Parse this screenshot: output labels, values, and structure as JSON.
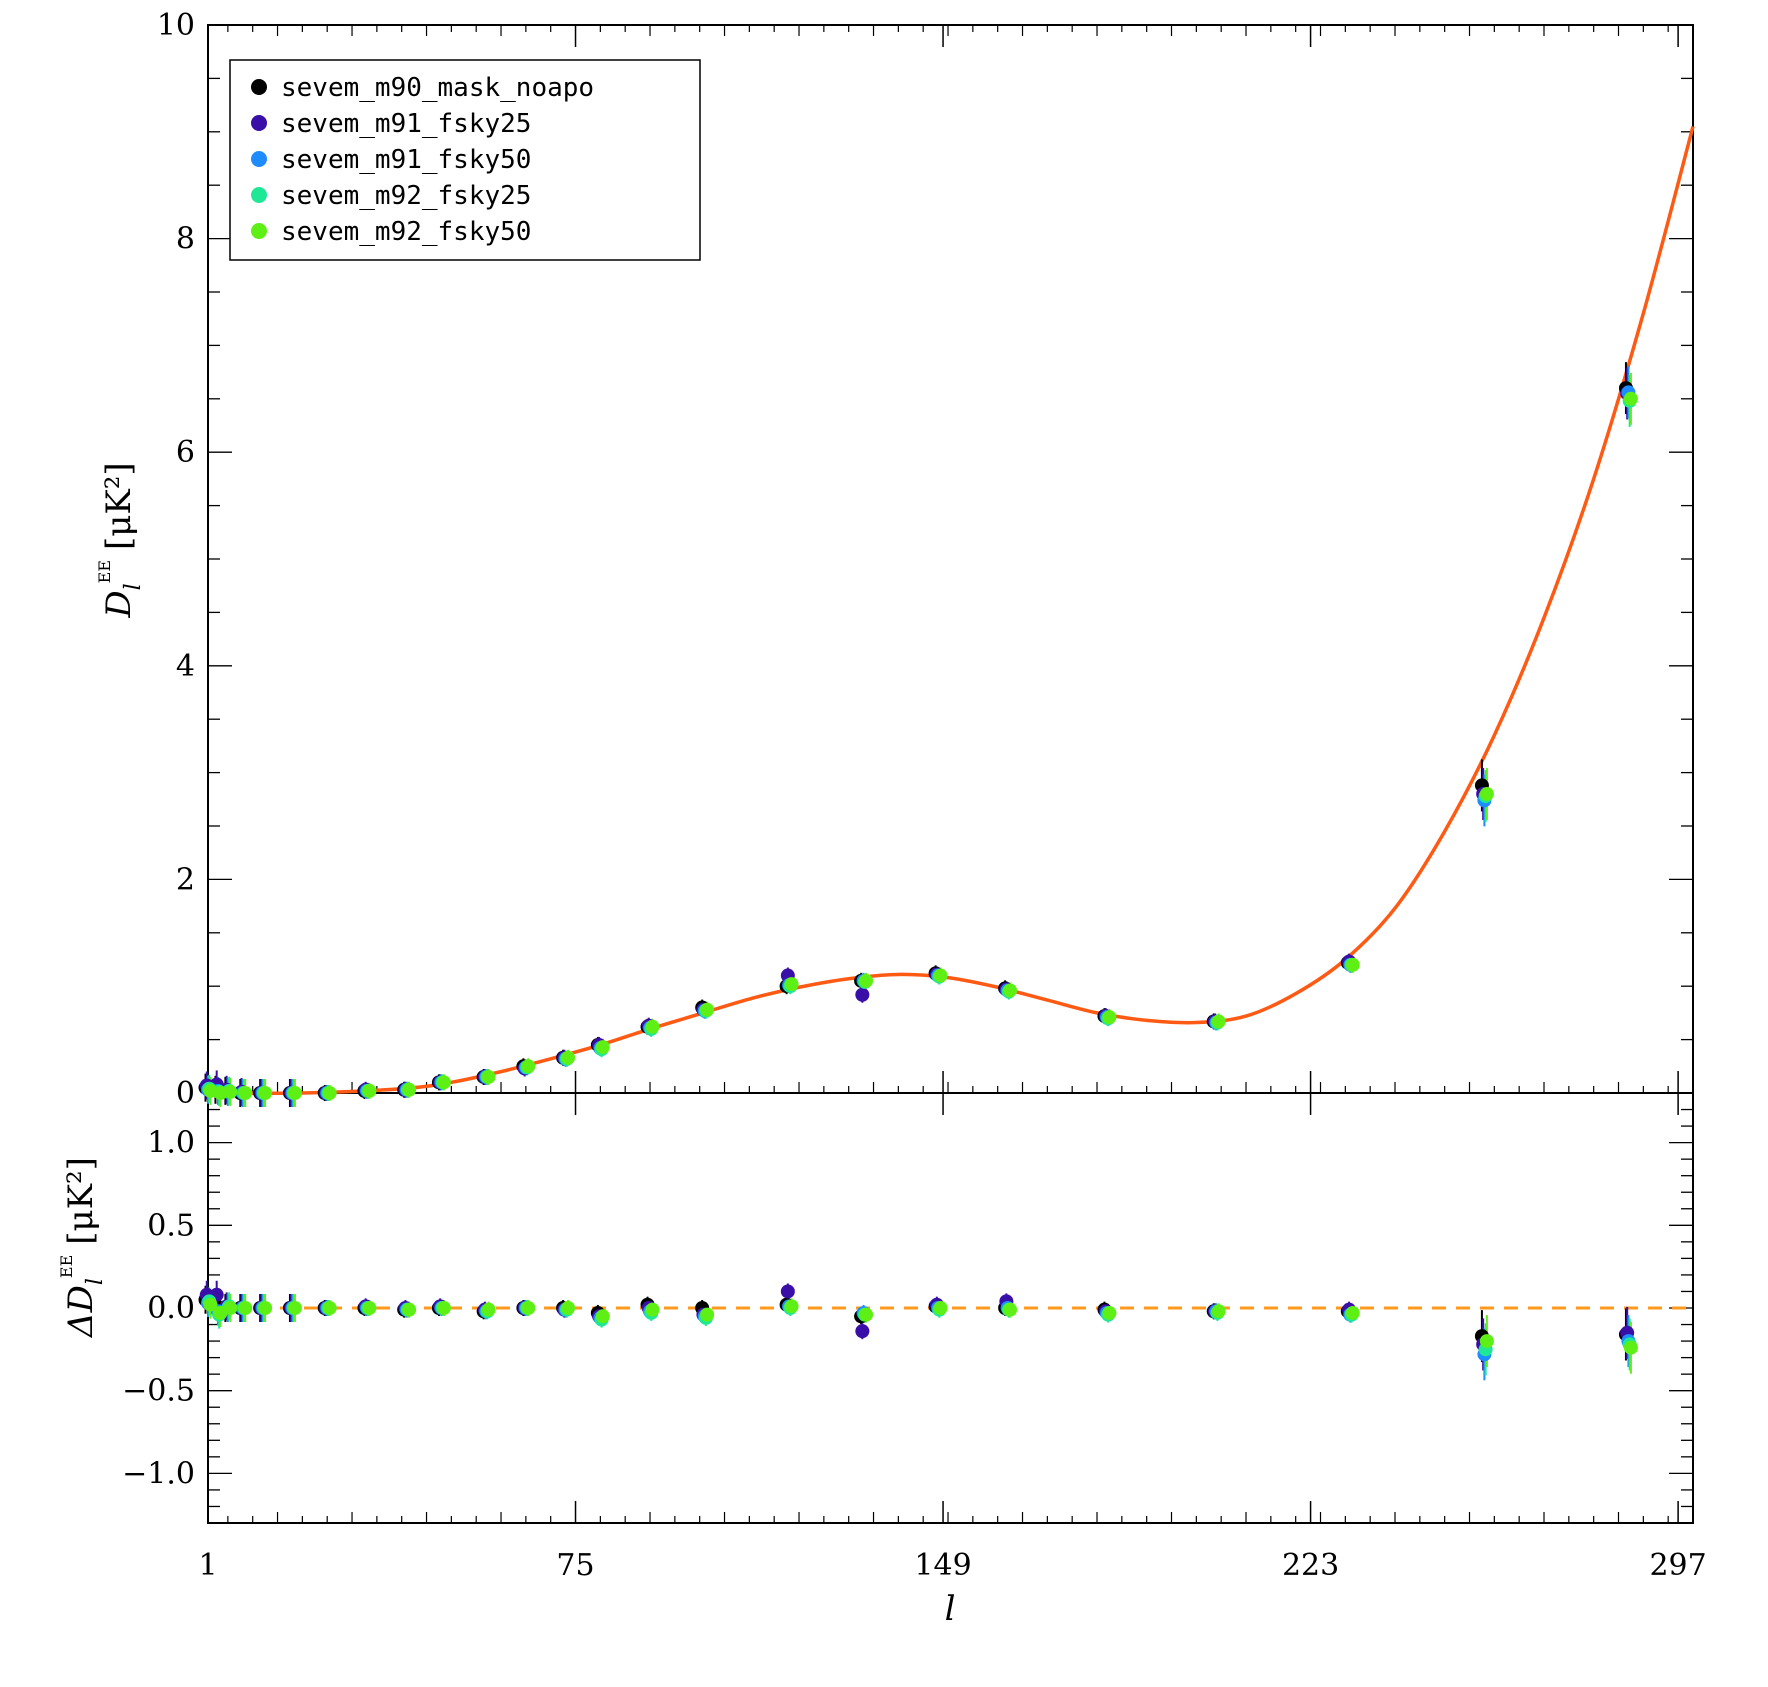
{
  "chart_data": [
    {
      "panel": "top",
      "type": "scatter",
      "xlabel": "l",
      "ylabel": "D_l^EE [μK²]",
      "ylabel_parts": {
        "main": "D",
        "sub": "l",
        "sup": "EE",
        "unit": "[μK²]"
      },
      "xlim": [
        1,
        300
      ],
      "ylim": [
        0,
        10
      ],
      "x_ticks": [
        "1",
        "75",
        "149",
        "223",
        "297"
      ],
      "y_ticks": [
        "0",
        "2",
        "4",
        "6",
        "8",
        "10"
      ],
      "legend_position": "top-left",
      "x": [
        1,
        3,
        5,
        8,
        12,
        18,
        25,
        33,
        41,
        48,
        57,
        65,
        73,
        80,
        90,
        101,
        118,
        133,
        148,
        162,
        182,
        204,
        231,
        258,
        287
      ],
      "model": {
        "style": "solid",
        "color": "#ff5a14",
        "x": [
          1,
          20,
          40,
          50,
          60,
          70,
          80,
          90,
          100,
          110,
          120,
          130,
          140,
          150,
          160,
          170,
          180,
          190,
          200,
          210,
          220,
          230,
          240,
          250,
          260,
          270,
          280,
          290,
          300
        ],
        "y": [
          0.0,
          0.0,
          0.04,
          0.1,
          0.2,
          0.32,
          0.45,
          0.6,
          0.74,
          0.88,
          0.99,
          1.07,
          1.11,
          1.08,
          0.99,
          0.87,
          0.75,
          0.68,
          0.66,
          0.72,
          0.93,
          1.25,
          1.73,
          2.45,
          3.35,
          4.45,
          5.75,
          7.3,
          9.05
        ]
      },
      "series": [
        {
          "name": "sevem_m90_mask_noapo",
          "color": "#000000",
          "y": [
            0.05,
            0.03,
            0.02,
            0.0,
            0.0,
            0.0,
            0.0,
            0.02,
            0.03,
            0.1,
            0.15,
            0.25,
            0.33,
            0.45,
            0.62,
            0.8,
            1.0,
            1.05,
            1.12,
            0.98,
            0.72,
            0.67,
            1.22,
            2.88,
            6.6
          ]
        },
        {
          "name": "sevem_m91_fsky25",
          "color": "#3a0fa8",
          "y": [
            0.07,
            0.08,
            0.03,
            0.01,
            0.0,
            0.0,
            0.0,
            0.03,
            0.03,
            0.1,
            0.15,
            0.23,
            0.33,
            0.45,
            0.63,
            0.78,
            1.1,
            0.92,
            1.11,
            0.97,
            0.72,
            0.67,
            1.23,
            2.8,
            6.55
          ]
        },
        {
          "name": "sevem_m91_fsky50",
          "color": "#1e8cff",
          "y": [
            0.03,
            0.02,
            0.01,
            0.0,
            0.0,
            0.0,
            0.0,
            0.02,
            0.03,
            0.1,
            0.15,
            0.24,
            0.32,
            0.42,
            0.61,
            0.77,
            1.01,
            1.05,
            1.1,
            0.96,
            0.71,
            0.66,
            1.2,
            2.74,
            6.56
          ]
        },
        {
          "name": "sevem_m92_fsky25",
          "color": "#1ee896",
          "y": [
            0.04,
            0.01,
            0.02,
            0.0,
            0.0,
            0.0,
            0.0,
            0.02,
            0.03,
            0.1,
            0.15,
            0.24,
            0.32,
            0.41,
            0.6,
            0.77,
            1.0,
            1.04,
            1.09,
            0.95,
            0.7,
            0.66,
            1.2,
            2.78,
            6.48
          ]
        },
        {
          "name": "sevem_m92_fsky50",
          "color": "#5ef014",
          "y": [
            0.02,
            0.0,
            0.01,
            0.0,
            0.0,
            0.0,
            0.0,
            0.02,
            0.03,
            0.1,
            0.15,
            0.25,
            0.33,
            0.43,
            0.62,
            0.78,
            1.02,
            1.05,
            1.1,
            0.96,
            0.71,
            0.67,
            1.2,
            2.8,
            6.5
          ]
        }
      ]
    },
    {
      "panel": "bottom",
      "type": "scatter",
      "xlabel": "l",
      "ylabel": "ΔD_l^EE [μK²]",
      "ylabel_parts": {
        "main": "ΔD",
        "sub": "l",
        "sup": "EE",
        "unit": "[μK²]"
      },
      "xlim": [
        1,
        300
      ],
      "ylim": [
        -1.3,
        1.3
      ],
      "y_ticks": [
        "1.0",
        "0.5",
        "0.0",
        "−0.5",
        "−1.0"
      ],
      "model": {
        "style": "dashed",
        "color": "#ff9a1e",
        "y": 0
      },
      "x": [
        1,
        3,
        5,
        8,
        12,
        18,
        25,
        33,
        41,
        48,
        57,
        65,
        73,
        80,
        90,
        101,
        118,
        133,
        148,
        162,
        182,
        204,
        231,
        258,
        287
      ],
      "series": [
        {
          "name": "sevem_m90_mask_noapo",
          "y": [
            0.05,
            0.02,
            0.0,
            0.0,
            0.0,
            0.0,
            0.0,
            0.0,
            -0.01,
            0.0,
            -0.02,
            0.0,
            0.0,
            -0.03,
            0.02,
            0.0,
            0.02,
            -0.05,
            0.01,
            0.0,
            -0.01,
            -0.02,
            -0.02,
            -0.17,
            -0.16
          ]
        },
        {
          "name": "sevem_m91_fsky25",
          "y": [
            0.08,
            0.08,
            0.01,
            0.0,
            0.0,
            0.0,
            0.0,
            0.01,
            0.0,
            0.01,
            -0.01,
            0.0,
            -0.01,
            -0.05,
            0.0,
            -0.04,
            0.1,
            -0.14,
            0.02,
            0.04,
            -0.02,
            -0.02,
            -0.01,
            -0.22,
            -0.15
          ]
        },
        {
          "name": "sevem_m91_fsky50",
          "y": [
            0.03,
            -0.02,
            0.0,
            0.0,
            0.0,
            0.0,
            0.0,
            0.0,
            -0.01,
            0.0,
            -0.02,
            0.0,
            -0.01,
            -0.06,
            -0.02,
            -0.05,
            0.01,
            -0.03,
            0.0,
            0.0,
            -0.03,
            -0.02,
            -0.04,
            -0.28,
            -0.2
          ]
        },
        {
          "name": "sevem_m92_fsky25",
          "y": [
            0.04,
            -0.04,
            0.01,
            0.0,
            0.0,
            0.0,
            0.0,
            0.0,
            -0.01,
            0.0,
            -0.02,
            0.0,
            -0.01,
            -0.07,
            -0.03,
            -0.06,
            0.0,
            -0.04,
            -0.01,
            -0.01,
            -0.04,
            -0.03,
            -0.04,
            -0.25,
            -0.22
          ]
        },
        {
          "name": "sevem_m92_fsky50",
          "y": [
            0.02,
            -0.03,
            0.0,
            0.0,
            0.0,
            0.0,
            0.0,
            0.0,
            -0.01,
            0.0,
            -0.01,
            0.0,
            0.0,
            -0.05,
            -0.01,
            -0.04,
            0.01,
            -0.04,
            0.0,
            -0.01,
            -0.03,
            -0.02,
            -0.03,
            -0.2,
            -0.24
          ]
        }
      ]
    }
  ]
}
